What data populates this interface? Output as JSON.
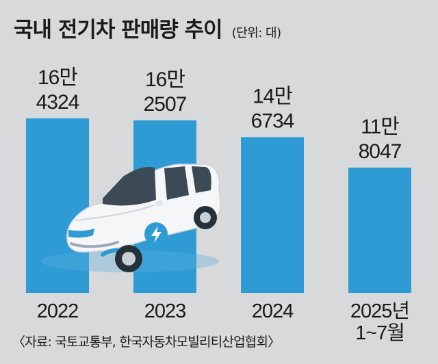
{
  "title": "국내 전기차 판매량 추이",
  "unit_note": "(단위: 대)",
  "source": "〈자료: 국토교통부, 한국자동차모빌리티산업협회〉",
  "colors": {
    "bar": "#2e9bd5",
    "background": "#d7d9db",
    "text": "#1a1a1a"
  },
  "chart_data": {
    "type": "bar",
    "title": "국내 전기차 판매량 추이",
    "ylabel": "",
    "xlabel": "",
    "unit": "대",
    "categories": [
      {
        "lines": [
          "2022"
        ]
      },
      {
        "lines": [
          "2023"
        ]
      },
      {
        "lines": [
          "2024"
        ]
      },
      {
        "lines": [
          "2025년",
          "1~7월"
        ]
      }
    ],
    "values": [
      164324,
      162507,
      146734,
      118047
    ],
    "value_labels": [
      [
        "16만",
        "4324"
      ],
      [
        "16만",
        "2507"
      ],
      [
        "14만",
        "6734"
      ],
      [
        "11만",
        "8047"
      ]
    ],
    "ylim": [
      0,
      180000
    ],
    "grid": false,
    "legend": "none"
  },
  "illustration": {
    "icon": "electric-car-icon"
  }
}
